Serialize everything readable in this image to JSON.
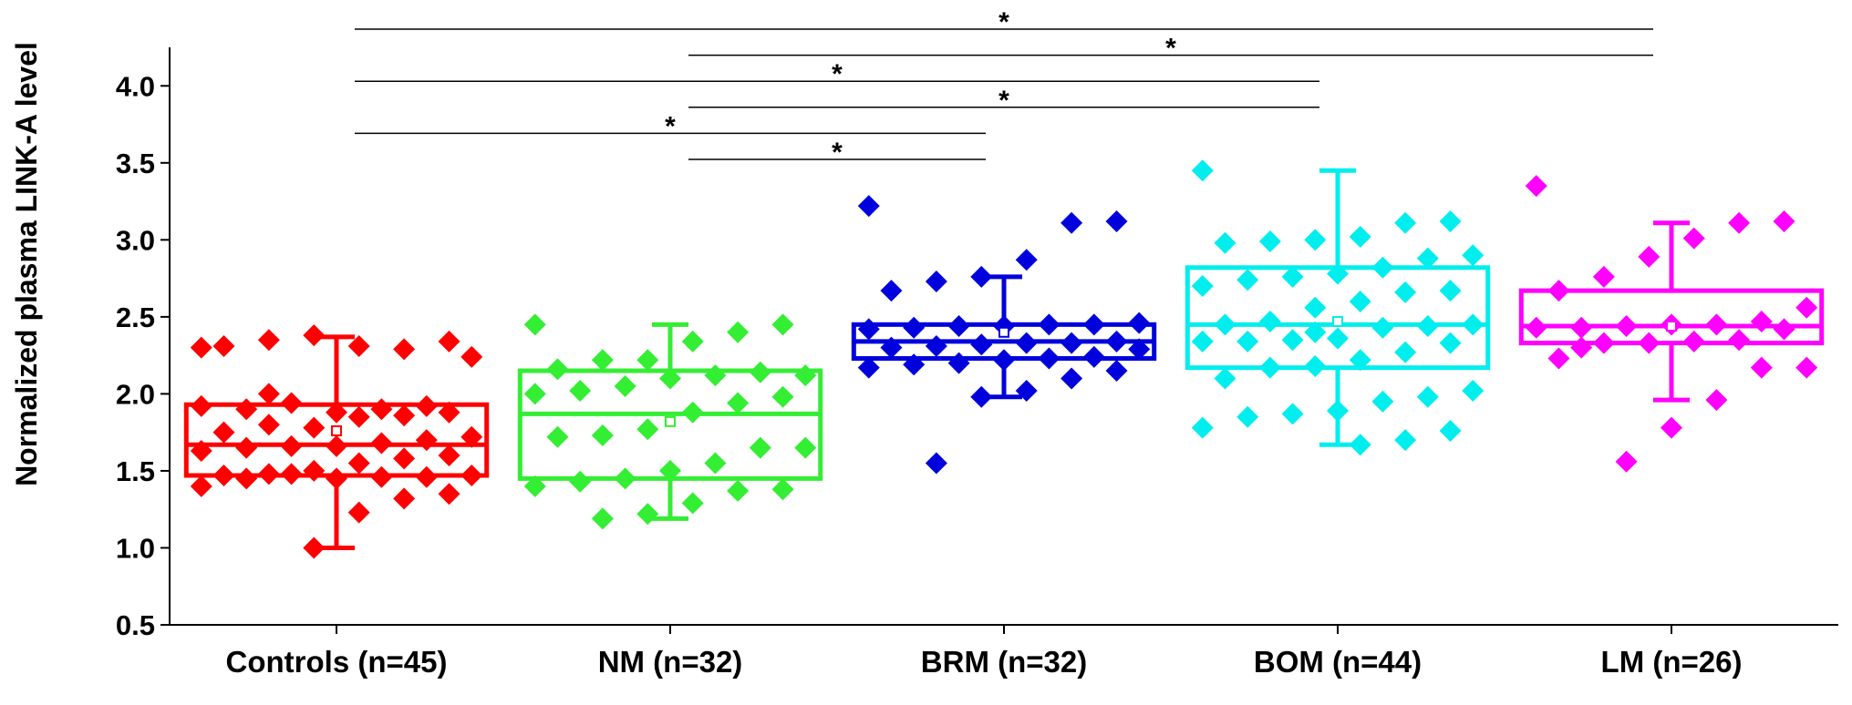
{
  "chart_data": {
    "type": "box",
    "ylabel": "Normalized plasma LINK-A level",
    "categories": [
      "Controls (n=45)",
      "NM (n=32)",
      "BRM (n=32)",
      "BOM (n=44)",
      "LM (n=26)"
    ],
    "ylim": [
      0.5,
      4.25
    ],
    "yticks": [
      0.5,
      {
        "value": 1,
        "label": "1.0"
      },
      1.5,
      {
        "value": 2,
        "label": "2.0"
      },
      2.5,
      {
        "value": 3,
        "label": "3.0"
      },
      3.5,
      {
        "value": 4,
        "label": "4.0"
      }
    ],
    "series": [
      {
        "name": "Controls (n=45)",
        "color": "#ff0000",
        "whisker_low": 1.0,
        "q1": 1.47,
        "median": 1.67,
        "q3": 1.93,
        "whisker_high": 2.37,
        "mean": 1.76,
        "points": [
          2.3,
          2.34,
          2.29,
          2.31,
          2.38,
          2.35,
          2.31,
          2.24,
          1.92,
          1.9,
          1.88,
          1.94,
          1.9,
          1.92,
          1.88,
          1.86,
          1.85,
          1.78,
          1.8,
          1.75,
          1.72,
          1.7,
          1.68,
          1.66,
          1.66,
          1.65,
          1.63,
          1.6,
          1.58,
          1.55,
          1.5,
          1.48,
          1.47,
          1.47,
          1.46,
          1.46,
          1.45,
          1.48,
          1.45,
          1.4,
          1.35,
          1.32,
          1.23,
          1.0,
          2.0
        ]
      },
      {
        "name": "NM (n=32)",
        "color": "#33ee33",
        "whisker_low": 1.19,
        "q1": 1.45,
        "median": 1.87,
        "q3": 2.15,
        "whisker_high": 2.45,
        "mean": 1.82,
        "points": [
          2.45,
          2.45,
          2.4,
          2.34,
          2.22,
          2.22,
          2.16,
          2.12,
          2.14,
          2.12,
          2.1,
          2.05,
          2.02,
          2.0,
          1.98,
          1.94,
          1.88,
          1.77,
          1.73,
          1.72,
          1.65,
          1.65,
          1.55,
          1.5,
          1.45,
          1.43,
          1.4,
          1.38,
          1.37,
          1.29,
          1.22,
          1.19
        ]
      },
      {
        "name": "BRM (n=32)",
        "color": "#0000dd",
        "whisker_low": 1.98,
        "q1": 2.23,
        "median": 2.34,
        "q3": 2.45,
        "whisker_high": 2.76,
        "mean": 2.4,
        "points": [
          3.22,
          3.12,
          3.11,
          2.87,
          2.76,
          2.73,
          2.67,
          2.46,
          2.45,
          2.45,
          2.44,
          2.44,
          2.43,
          2.42,
          2.34,
          2.33,
          2.33,
          2.32,
          2.31,
          2.3,
          2.29,
          2.24,
          2.23,
          2.22,
          2.2,
          2.19,
          2.17,
          2.15,
          2.1,
          2.02,
          1.98,
          1.55
        ]
      },
      {
        "name": "BOM (n=44)",
        "color": "#00eeee",
        "whisker_low": 1.67,
        "q1": 2.17,
        "median": 2.45,
        "q3": 2.82,
        "whisker_high": 3.45,
        "mean": 2.47,
        "points": [
          3.45,
          3.12,
          3.11,
          3.02,
          3.0,
          2.99,
          2.98,
          2.9,
          2.88,
          2.82,
          2.78,
          2.76,
          2.74,
          2.7,
          2.67,
          2.66,
          2.6,
          2.56,
          2.47,
          2.45,
          2.45,
          2.44,
          2.43,
          2.36,
          2.35,
          2.34,
          2.34,
          2.33,
          2.27,
          2.22,
          2.18,
          2.17,
          2.1,
          2.02,
          1.98,
          1.95,
          1.89,
          1.87,
          1.85,
          1.78,
          1.76,
          1.7,
          1.67,
          2.4
        ]
      },
      {
        "name": "LM (n=26)",
        "color": "#ff00ff",
        "whisker_low": 1.96,
        "q1": 2.33,
        "median": 2.44,
        "q3": 2.67,
        "whisker_high": 3.11,
        "mean": 2.44,
        "points": [
          3.35,
          3.12,
          3.11,
          3.01,
          2.89,
          2.76,
          2.67,
          2.56,
          2.47,
          2.45,
          2.45,
          2.44,
          2.43,
          2.43,
          2.42,
          2.35,
          2.34,
          2.33,
          2.33,
          2.23,
          2.17,
          2.17,
          1.96,
          1.78,
          1.56,
          2.3
        ]
      }
    ],
    "comparisons": [
      {
        "groups": [
          0,
          4
        ],
        "label": "*"
      },
      {
        "groups": [
          1,
          4
        ],
        "label": "*"
      },
      {
        "groups": [
          0,
          3
        ],
        "label": "*"
      },
      {
        "groups": [
          1,
          3
        ],
        "label": "*"
      },
      {
        "groups": [
          0,
          2
        ],
        "label": "*"
      },
      {
        "groups": [
          1,
          2
        ],
        "label": "*"
      }
    ]
  }
}
